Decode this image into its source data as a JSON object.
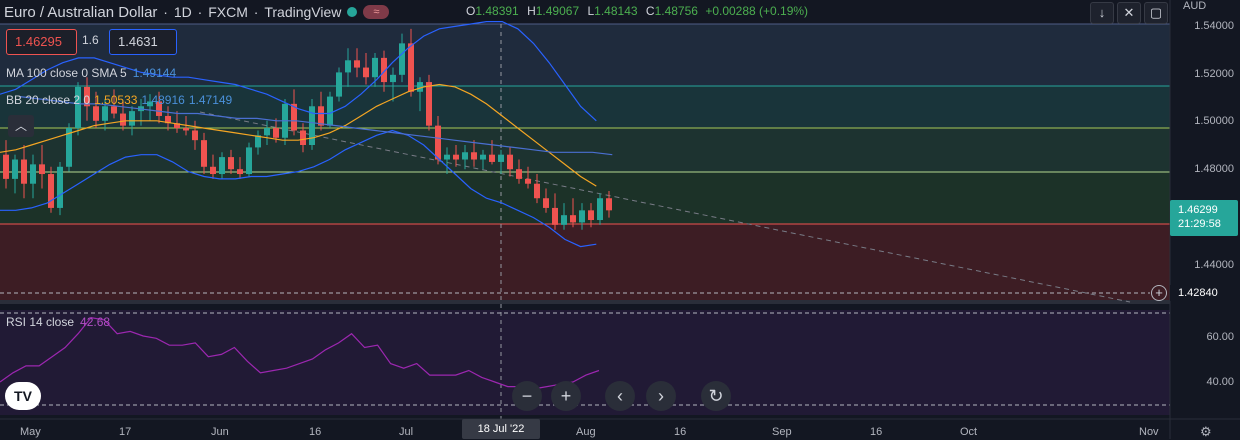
{
  "header": {
    "symbol": "Euro / Australian Dollar",
    "interval": "1D",
    "exchange": "FXCM",
    "source": "TradingView",
    "status_icon": "wave-icon"
  },
  "ohlc": {
    "o_label": "O",
    "o": "1.48391",
    "h_label": "H",
    "h": "1.49067",
    "l_label": "L",
    "l": "1.48143",
    "c_label": "C",
    "c": "1.48756",
    "change": "+0.00288 (+0.19%)"
  },
  "toolbar": {
    "down_icon": "arrow-down-icon",
    "collapse_icon": "collapse-icon",
    "fullscreen_icon": "fullscreen-icon"
  },
  "currency": "AUD",
  "trade": {
    "sell": "1.46295",
    "spread": "1.6",
    "buy": "1.4631"
  },
  "indicators": {
    "ma": {
      "label": "MA 100 close 0 SMA 5",
      "value": "1.49144"
    },
    "bb": {
      "label": "BB 20 close 2 0",
      "v1": "1.50533",
      "v2": "1.48916",
      "v3": "1.47149"
    },
    "rsi": {
      "label": "RSI 14 close",
      "value": "42.68"
    }
  },
  "y_axis": [
    "1.54000",
    "1.52000",
    "1.50000",
    "1.48000",
    "1.44000"
  ],
  "last_price": {
    "price": "1.46299",
    "countdown": "21:29:58"
  },
  "level_tag": "1.42840",
  "rsi_axis": [
    "60.00",
    "40.00"
  ],
  "x_axis": [
    "May",
    "17",
    "Jun",
    "16",
    "Jul",
    "Aug",
    "16",
    "Sep",
    "16",
    "Oct",
    "Nov"
  ],
  "crosshair_date": "18 Jul '22",
  "nav": [
    "zoom-out-icon",
    "zoom-in-icon",
    "scroll-left-icon",
    "scroll-right-icon",
    "reset-icon"
  ],
  "logo": "TV",
  "colors": {
    "up": "#26a69a",
    "down": "#ef5350",
    "bb": "#2962ff",
    "ma": "#f5a623",
    "rsi": "#9c27b0",
    "background": "#131722"
  },
  "chart_data": {
    "type": "candlestick",
    "title": "Euro / Australian Dollar",
    "ylim": [
      1.418,
      1.542
    ],
    "candles": [
      {
        "o": 1.486,
        "h": 1.492,
        "l": 1.472,
        "c": 1.476
      },
      {
        "o": 1.476,
        "h": 1.486,
        "l": 1.47,
        "c": 1.484
      },
      {
        "o": 1.484,
        "h": 1.49,
        "l": 1.468,
        "c": 1.474
      },
      {
        "o": 1.474,
        "h": 1.486,
        "l": 1.468,
        "c": 1.482
      },
      {
        "o": 1.482,
        "h": 1.49,
        "l": 1.472,
        "c": 1.478
      },
      {
        "o": 1.478,
        "h": 1.481,
        "l": 1.462,
        "c": 1.464
      },
      {
        "o": 1.464,
        "h": 1.483,
        "l": 1.461,
        "c": 1.481
      },
      {
        "o": 1.481,
        "h": 1.499,
        "l": 1.479,
        "c": 1.497
      },
      {
        "o": 1.497,
        "h": 1.516,
        "l": 1.494,
        "c": 1.514
      },
      {
        "o": 1.514,
        "h": 1.518,
        "l": 1.5,
        "c": 1.506
      },
      {
        "o": 1.506,
        "h": 1.512,
        "l": 1.497,
        "c": 1.5
      },
      {
        "o": 1.5,
        "h": 1.509,
        "l": 1.496,
        "c": 1.506
      },
      {
        "o": 1.506,
        "h": 1.513,
        "l": 1.501,
        "c": 1.503
      },
      {
        "o": 1.503,
        "h": 1.508,
        "l": 1.496,
        "c": 1.498
      },
      {
        "o": 1.498,
        "h": 1.506,
        "l": 1.494,
        "c": 1.504
      },
      {
        "o": 1.504,
        "h": 1.509,
        "l": 1.498,
        "c": 1.506
      },
      {
        "o": 1.506,
        "h": 1.511,
        "l": 1.5,
        "c": 1.508
      },
      {
        "o": 1.508,
        "h": 1.512,
        "l": 1.499,
        "c": 1.502
      },
      {
        "o": 1.502,
        "h": 1.506,
        "l": 1.496,
        "c": 1.499
      },
      {
        "o": 1.499,
        "h": 1.504,
        "l": 1.495,
        "c": 1.497
      },
      {
        "o": 1.497,
        "h": 1.502,
        "l": 1.494,
        "c": 1.496
      },
      {
        "o": 1.496,
        "h": 1.5,
        "l": 1.488,
        "c": 1.492
      },
      {
        "o": 1.492,
        "h": 1.495,
        "l": 1.478,
        "c": 1.481
      },
      {
        "o": 1.481,
        "h": 1.486,
        "l": 1.476,
        "c": 1.478
      },
      {
        "o": 1.478,
        "h": 1.487,
        "l": 1.476,
        "c": 1.485
      },
      {
        "o": 1.485,
        "h": 1.488,
        "l": 1.478,
        "c": 1.48
      },
      {
        "o": 1.48,
        "h": 1.485,
        "l": 1.476,
        "c": 1.478
      },
      {
        "o": 1.478,
        "h": 1.491,
        "l": 1.477,
        "c": 1.489
      },
      {
        "o": 1.489,
        "h": 1.496,
        "l": 1.486,
        "c": 1.494
      },
      {
        "o": 1.494,
        "h": 1.5,
        "l": 1.49,
        "c": 1.497
      },
      {
        "o": 1.497,
        "h": 1.501,
        "l": 1.491,
        "c": 1.493
      },
      {
        "o": 1.493,
        "h": 1.509,
        "l": 1.49,
        "c": 1.507
      },
      {
        "o": 1.507,
        "h": 1.513,
        "l": 1.494,
        "c": 1.496
      },
      {
        "o": 1.496,
        "h": 1.499,
        "l": 1.487,
        "c": 1.49
      },
      {
        "o": 1.49,
        "h": 1.509,
        "l": 1.488,
        "c": 1.506
      },
      {
        "o": 1.506,
        "h": 1.512,
        "l": 1.496,
        "c": 1.498
      },
      {
        "o": 1.498,
        "h": 1.512,
        "l": 1.497,
        "c": 1.51
      },
      {
        "o": 1.51,
        "h": 1.522,
        "l": 1.508,
        "c": 1.52
      },
      {
        "o": 1.52,
        "h": 1.53,
        "l": 1.514,
        "c": 1.525
      },
      {
        "o": 1.525,
        "h": 1.53,
        "l": 1.518,
        "c": 1.522
      },
      {
        "o": 1.522,
        "h": 1.528,
        "l": 1.515,
        "c": 1.518
      },
      {
        "o": 1.518,
        "h": 1.528,
        "l": 1.514,
        "c": 1.526
      },
      {
        "o": 1.526,
        "h": 1.529,
        "l": 1.512,
        "c": 1.516
      },
      {
        "o": 1.516,
        "h": 1.522,
        "l": 1.508,
        "c": 1.519
      },
      {
        "o": 1.519,
        "h": 1.536,
        "l": 1.516,
        "c": 1.532
      },
      {
        "o": 1.532,
        "h": 1.538,
        "l": 1.51,
        "c": 1.512
      },
      {
        "o": 1.512,
        "h": 1.518,
        "l": 1.504,
        "c": 1.516
      },
      {
        "o": 1.516,
        "h": 1.519,
        "l": 1.496,
        "c": 1.498
      },
      {
        "o": 1.498,
        "h": 1.502,
        "l": 1.482,
        "c": 1.484
      },
      {
        "o": 1.484,
        "h": 1.489,
        "l": 1.478,
        "c": 1.486
      },
      {
        "o": 1.486,
        "h": 1.49,
        "l": 1.481,
        "c": 1.484
      },
      {
        "o": 1.484,
        "h": 1.49,
        "l": 1.48,
        "c": 1.487
      },
      {
        "o": 1.487,
        "h": 1.492,
        "l": 1.481,
        "c": 1.484
      },
      {
        "o": 1.484,
        "h": 1.488,
        "l": 1.48,
        "c": 1.486
      },
      {
        "o": 1.486,
        "h": 1.492,
        "l": 1.482,
        "c": 1.483
      },
      {
        "o": 1.483,
        "h": 1.488,
        "l": 1.478,
        "c": 1.486
      },
      {
        "o": 1.486,
        "h": 1.489,
        "l": 1.477,
        "c": 1.48
      },
      {
        "o": 1.48,
        "h": 1.484,
        "l": 1.474,
        "c": 1.476
      },
      {
        "o": 1.476,
        "h": 1.481,
        "l": 1.472,
        "c": 1.474
      },
      {
        "o": 1.474,
        "h": 1.478,
        "l": 1.466,
        "c": 1.468
      },
      {
        "o": 1.468,
        "h": 1.472,
        "l": 1.462,
        "c": 1.464
      },
      {
        "o": 1.464,
        "h": 1.47,
        "l": 1.455,
        "c": 1.457
      },
      {
        "o": 1.457,
        "h": 1.466,
        "l": 1.455,
        "c": 1.461
      },
      {
        "o": 1.461,
        "h": 1.468,
        "l": 1.456,
        "c": 1.458
      },
      {
        "o": 1.458,
        "h": 1.466,
        "l": 1.455,
        "c": 1.463
      },
      {
        "o": 1.463,
        "h": 1.466,
        "l": 1.456,
        "c": 1.459
      },
      {
        "o": 1.459,
        "h": 1.47,
        "l": 1.457,
        "c": 1.468
      },
      {
        "o": 1.468,
        "h": 1.471,
        "l": 1.46,
        "c": 1.463
      }
    ],
    "bb_upper": [
      1.511,
      1.513,
      1.517,
      1.521,
      1.524,
      1.526,
      1.526,
      1.524,
      1.522,
      1.52,
      1.519,
      1.518,
      1.518,
      1.517,
      1.516,
      1.515,
      1.513,
      1.511,
      1.508,
      1.505,
      1.503,
      1.503,
      1.506,
      1.511,
      1.517,
      1.524,
      1.53,
      1.535,
      1.538,
      1.539,
      1.54,
      1.541,
      1.541,
      1.538,
      1.532,
      1.524,
      1.515,
      1.506,
      1.5
    ],
    "bb_mid": [
      1.487,
      1.488,
      1.49,
      1.492,
      1.494,
      1.496,
      1.498,
      1.499,
      1.5,
      1.5,
      1.5,
      1.499,
      1.498,
      1.497,
      1.496,
      1.495,
      1.494,
      1.493,
      1.492,
      1.492,
      1.493,
      1.495,
      1.498,
      1.502,
      1.506,
      1.509,
      1.512,
      1.514,
      1.515,
      1.514,
      1.511,
      1.507,
      1.502,
      1.497,
      1.492,
      1.487,
      1.482,
      1.477,
      1.473
    ],
    "bb_lower": [
      1.463,
      1.463,
      1.464,
      1.466,
      1.47,
      1.474,
      1.478,
      1.482,
      1.485,
      1.486,
      1.486,
      1.483,
      1.479,
      1.477,
      1.476,
      1.476,
      1.477,
      1.477,
      1.478,
      1.479,
      1.481,
      1.484,
      1.488,
      1.491,
      1.494,
      1.496,
      1.494,
      1.49,
      1.484,
      1.478,
      1.472,
      1.468,
      1.466,
      1.463,
      1.46,
      1.456,
      1.451,
      1.448,
      1.449
    ],
    "ma": [
      1.51,
      1.509,
      1.508,
      1.507,
      1.507,
      1.506,
      1.505,
      1.504,
      1.503,
      1.503,
      1.502,
      1.501,
      1.501,
      1.5,
      1.5,
      1.499,
      1.498,
      1.497,
      1.496,
      1.495,
      1.494,
      1.493,
      1.492,
      1.491,
      1.49,
      1.489,
      1.488,
      1.487,
      1.487,
      1.487,
      1.486
    ],
    "rsi": [
      40,
      44,
      47,
      47,
      51,
      55,
      61,
      68,
      67,
      61,
      62,
      60,
      59,
      56,
      56,
      57,
      51,
      52,
      55,
      49,
      44,
      45,
      46,
      48,
      50,
      54,
      57,
      61,
      55,
      56,
      48,
      46,
      48,
      43,
      43,
      43,
      45,
      42,
      40,
      38,
      38,
      37,
      38,
      39,
      40,
      43,
      45
    ]
  }
}
